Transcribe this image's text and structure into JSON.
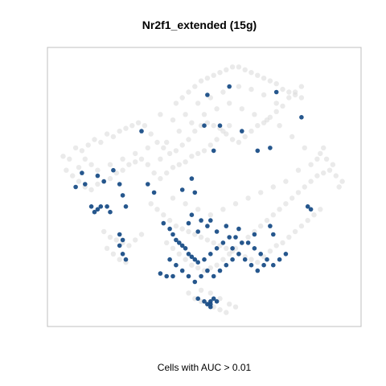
{
  "chart_data": {
    "type": "scatter",
    "title": "Nr2f1_extended (15g)",
    "xlabel": "Cells with AUC > 0.01",
    "ylabel": "",
    "xlim": [
      0,
      100
    ],
    "ylim": [
      0,
      100
    ],
    "grid": false,
    "axes_visible": false,
    "colors": {
      "background_cells": "#d9d9d9",
      "highlighted_cells": "#1a4e87",
      "frame": "#bfbfbf"
    },
    "series": [
      {
        "role": "background",
        "points": [
          [
            5,
            61
          ],
          [
            7,
            60
          ],
          [
            9,
            64
          ],
          [
            11,
            63
          ],
          [
            13,
            65
          ],
          [
            15,
            67
          ],
          [
            17,
            66
          ],
          [
            19,
            69
          ],
          [
            21,
            68
          ],
          [
            23,
            70
          ],
          [
            25,
            71
          ],
          [
            27,
            72
          ],
          [
            29,
            73
          ],
          [
            31,
            72
          ],
          [
            33,
            69
          ],
          [
            35,
            66
          ],
          [
            37,
            64
          ],
          [
            39,
            62
          ],
          [
            41,
            63
          ],
          [
            43,
            65
          ],
          [
            45,
            67
          ],
          [
            47,
            70
          ],
          [
            49,
            72
          ],
          [
            51,
            73
          ],
          [
            53,
            72
          ],
          [
            55,
            71
          ],
          [
            57,
            69
          ],
          [
            59,
            67
          ],
          [
            61,
            66
          ],
          [
            63,
            68
          ],
          [
            65,
            70
          ],
          [
            67,
            72
          ],
          [
            69,
            73
          ],
          [
            71,
            75
          ],
          [
            73,
            77
          ],
          [
            75,
            79
          ],
          [
            77,
            82
          ],
          [
            79,
            84
          ],
          [
            81,
            86
          ],
          [
            6,
            56
          ],
          [
            8,
            54
          ],
          [
            10,
            52
          ],
          [
            12,
            50
          ],
          [
            14,
            49
          ],
          [
            16,
            51
          ],
          [
            18,
            52
          ],
          [
            20,
            53
          ],
          [
            22,
            55
          ],
          [
            24,
            56
          ],
          [
            26,
            58
          ],
          [
            28,
            59
          ],
          [
            30,
            60
          ],
          [
            32,
            58
          ],
          [
            34,
            55
          ],
          [
            36,
            53
          ],
          [
            38,
            55
          ],
          [
            40,
            57
          ],
          [
            42,
            58
          ],
          [
            44,
            59
          ],
          [
            46,
            61
          ],
          [
            48,
            62
          ],
          [
            50,
            63
          ],
          [
            52,
            65
          ],
          [
            54,
            67
          ],
          [
            56,
            70
          ],
          [
            58,
            72
          ],
          [
            41,
            80
          ],
          [
            43,
            82
          ],
          [
            45,
            84
          ],
          [
            47,
            86
          ],
          [
            49,
            88
          ],
          [
            51,
            89
          ],
          [
            53,
            90
          ],
          [
            55,
            91
          ],
          [
            57,
            92
          ],
          [
            59,
            93
          ],
          [
            61,
            93
          ],
          [
            63,
            92
          ],
          [
            65,
            91
          ],
          [
            67,
            90
          ],
          [
            69,
            89
          ],
          [
            71,
            88
          ],
          [
            73,
            87
          ],
          [
            75,
            85
          ],
          [
            77,
            84
          ],
          [
            79,
            83
          ],
          [
            81,
            82
          ],
          [
            61,
            86
          ],
          [
            65,
            85
          ],
          [
            69,
            83
          ],
          [
            73,
            80
          ],
          [
            56,
            84
          ],
          [
            52,
            82
          ],
          [
            48,
            80
          ],
          [
            44,
            76
          ],
          [
            40,
            74
          ],
          [
            36,
            76
          ],
          [
            33,
            44
          ],
          [
            35,
            42
          ],
          [
            37,
            40
          ],
          [
            39,
            38
          ],
          [
            41,
            36
          ],
          [
            43,
            35
          ],
          [
            45,
            34
          ],
          [
            47,
            33
          ],
          [
            49,
            32
          ],
          [
            51,
            31
          ],
          [
            53,
            30
          ],
          [
            55,
            29
          ],
          [
            57,
            28
          ],
          [
            59,
            27
          ],
          [
            61,
            26
          ],
          [
            63,
            25
          ],
          [
            65,
            24
          ],
          [
            67,
            23
          ],
          [
            69,
            25
          ],
          [
            71,
            27
          ],
          [
            73,
            29
          ],
          [
            75,
            30
          ],
          [
            77,
            32
          ],
          [
            79,
            34
          ],
          [
            81,
            36
          ],
          [
            83,
            38
          ],
          [
            85,
            40
          ],
          [
            87,
            42
          ],
          [
            38,
            30
          ],
          [
            40,
            28
          ],
          [
            42,
            26
          ],
          [
            44,
            24
          ],
          [
            46,
            22
          ],
          [
            48,
            21
          ],
          [
            50,
            20
          ],
          [
            52,
            21
          ],
          [
            54,
            22
          ],
          [
            56,
            24
          ],
          [
            58,
            26
          ],
          [
            60,
            28
          ],
          [
            62,
            30
          ],
          [
            64,
            32
          ],
          [
            66,
            34
          ],
          [
            68,
            36
          ],
          [
            70,
            38
          ],
          [
            72,
            40
          ],
          [
            74,
            42
          ],
          [
            76,
            44
          ],
          [
            78,
            46
          ],
          [
            80,
            48
          ],
          [
            82,
            50
          ],
          [
            84,
            52
          ],
          [
            86,
            54
          ],
          [
            88,
            55
          ],
          [
            90,
            56
          ],
          [
            92,
            54
          ],
          [
            94,
            52
          ],
          [
            93,
            50
          ],
          [
            91,
            58
          ],
          [
            89,
            60
          ],
          [
            87,
            62
          ],
          [
            18,
            34
          ],
          [
            20,
            32
          ],
          [
            22,
            31
          ],
          [
            24,
            30
          ],
          [
            26,
            29
          ],
          [
            28,
            31
          ],
          [
            30,
            33
          ],
          [
            19,
            28
          ],
          [
            21,
            26
          ],
          [
            23,
            24
          ],
          [
            25,
            23
          ],
          [
            45,
            12
          ],
          [
            47,
            10
          ],
          [
            49,
            9
          ],
          [
            51,
            8
          ],
          [
            53,
            7
          ],
          [
            55,
            6
          ],
          [
            57,
            5
          ],
          [
            55,
            10
          ],
          [
            52,
            12
          ],
          [
            49,
            13
          ],
          [
            58,
            8
          ],
          [
            60,
            7
          ],
          [
            10,
            57
          ],
          [
            12,
            60
          ],
          [
            14,
            58
          ],
          [
            16,
            56
          ],
          [
            20,
            58
          ],
          [
            24,
            60
          ],
          [
            28,
            62
          ],
          [
            32,
            64
          ],
          [
            36,
            60
          ],
          [
            38,
            66
          ],
          [
            42,
            70
          ],
          [
            46,
            73
          ],
          [
            50,
            76
          ],
          [
            54,
            78
          ],
          [
            58,
            80
          ],
          [
            62,
            78
          ],
          [
            66,
            76
          ],
          [
            70,
            74
          ],
          [
            74,
            72
          ],
          [
            78,
            68
          ],
          [
            82,
            64
          ],
          [
            86,
            60
          ],
          [
            88,
            64
          ],
          [
            84,
            58
          ],
          [
            80,
            56
          ],
          [
            76,
            52
          ],
          [
            72,
            50
          ],
          [
            68,
            48
          ],
          [
            64,
            46
          ],
          [
            60,
            44
          ],
          [
            56,
            42
          ],
          [
            52,
            40
          ],
          [
            48,
            42
          ],
          [
            44,
            44
          ],
          [
            40,
            46
          ]
        ]
      },
      {
        "role": "highlighted",
        "points": [
          [
            51,
            83
          ],
          [
            58,
            86
          ],
          [
            73,
            84
          ],
          [
            81,
            75
          ],
          [
            50,
            72
          ],
          [
            55,
            72
          ],
          [
            30,
            70
          ],
          [
            62,
            70
          ],
          [
            67,
            63
          ],
          [
            71,
            64
          ],
          [
            53,
            63
          ],
          [
            11,
            55
          ],
          [
            12,
            51
          ],
          [
            16,
            54
          ],
          [
            18,
            52
          ],
          [
            21,
            56
          ],
          [
            23,
            51
          ],
          [
            9,
            50
          ],
          [
            14,
            43
          ],
          [
            16,
            42
          ],
          [
            17,
            43
          ],
          [
            15,
            41
          ],
          [
            19,
            43
          ],
          [
            20,
            41
          ],
          [
            24,
            47
          ],
          [
            25,
            43
          ],
          [
            32,
            51
          ],
          [
            34,
            48
          ],
          [
            46,
            53
          ],
          [
            43,
            49
          ],
          [
            47,
            48
          ],
          [
            46,
            40
          ],
          [
            49,
            38
          ],
          [
            52,
            38
          ],
          [
            45,
            37
          ],
          [
            48,
            34
          ],
          [
            51,
            36
          ],
          [
            54,
            34
          ],
          [
            57,
            36
          ],
          [
            61,
            35
          ],
          [
            66,
            33
          ],
          [
            72,
            33
          ],
          [
            71,
            36
          ],
          [
            62,
            30
          ],
          [
            59,
            28
          ],
          [
            37,
            37
          ],
          [
            39,
            35
          ],
          [
            40,
            33
          ],
          [
            41,
            31
          ],
          [
            42,
            30
          ],
          [
            43,
            29
          ],
          [
            44,
            28
          ],
          [
            45,
            26
          ],
          [
            46,
            25
          ],
          [
            47,
            24
          ],
          [
            48,
            23
          ],
          [
            50,
            24
          ],
          [
            52,
            26
          ],
          [
            54,
            28
          ],
          [
            56,
            30
          ],
          [
            58,
            32
          ],
          [
            60,
            32
          ],
          [
            64,
            30
          ],
          [
            66,
            28
          ],
          [
            68,
            26
          ],
          [
            70,
            24
          ],
          [
            72,
            22
          ],
          [
            74,
            24
          ],
          [
            76,
            26
          ],
          [
            39,
            24
          ],
          [
            41,
            22
          ],
          [
            43,
            20
          ],
          [
            45,
            18
          ],
          [
            47,
            16
          ],
          [
            49,
            18
          ],
          [
            51,
            20
          ],
          [
            53,
            18
          ],
          [
            55,
            20
          ],
          [
            57,
            22
          ],
          [
            59,
            24
          ],
          [
            61,
            26
          ],
          [
            63,
            24
          ],
          [
            65,
            22
          ],
          [
            67,
            20
          ],
          [
            69,
            22
          ],
          [
            23,
            33
          ],
          [
            24,
            31
          ],
          [
            23,
            29
          ],
          [
            24,
            26
          ],
          [
            25,
            24
          ],
          [
            36,
            19
          ],
          [
            38,
            18
          ],
          [
            40,
            18
          ],
          [
            48,
            10
          ],
          [
            50,
            9
          ],
          [
            51,
            8
          ],
          [
            52,
            8
          ],
          [
            52,
            9
          ],
          [
            53,
            10
          ],
          [
            54,
            9
          ],
          [
            52,
            7
          ],
          [
            83,
            43
          ],
          [
            84,
            42
          ]
        ]
      }
    ]
  }
}
